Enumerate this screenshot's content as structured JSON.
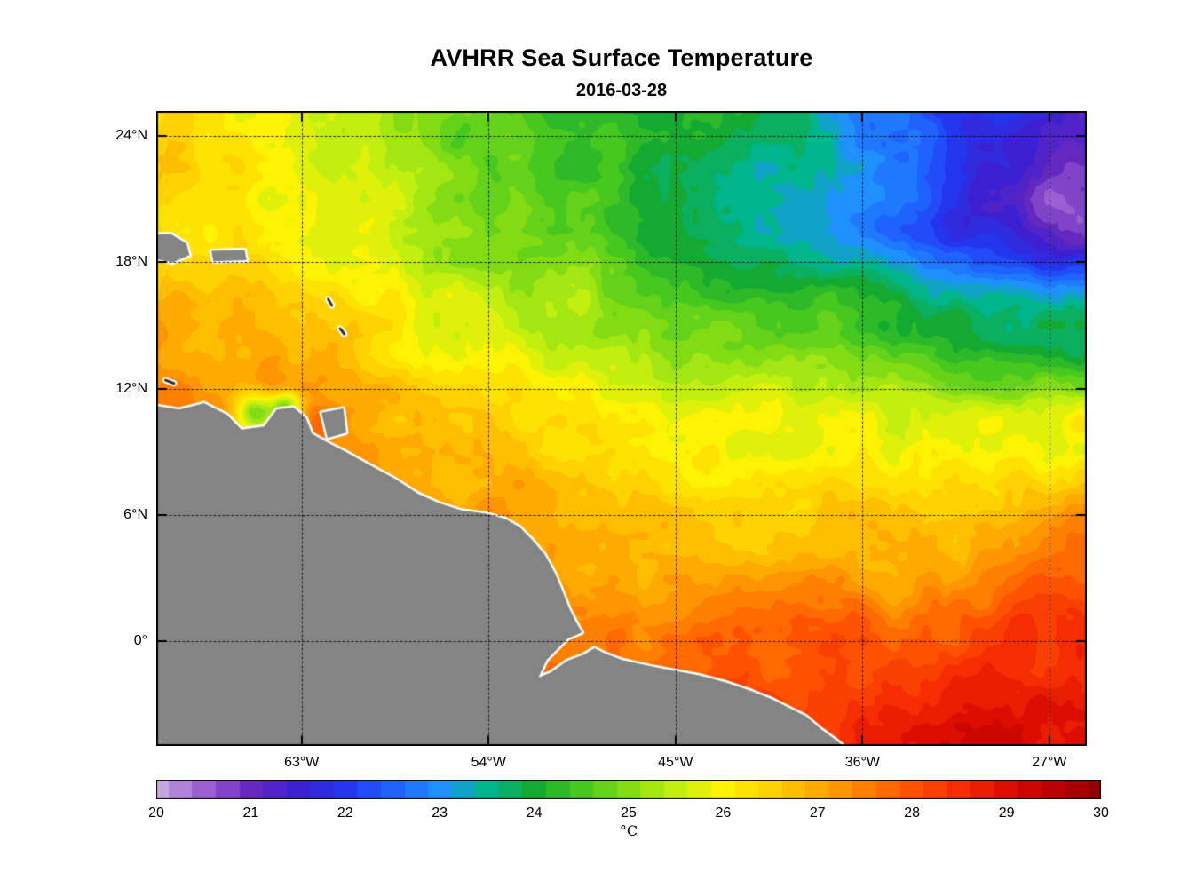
{
  "figure": {
    "title": "AVHRR Sea Surface Temperature",
    "subtitle": "2016-03-28",
    "background_color": "#ffffff"
  },
  "chart_data": {
    "type": "heatmap",
    "title": "AVHRR Sea Surface Temperature",
    "subtitle": "2016-03-28",
    "variable": "sea-surface-temperature",
    "units": "°C",
    "lon_range": [
      -70.0,
      -25.2
    ],
    "lat_range": [
      -5.0,
      25.2
    ],
    "x_axis": {
      "ticks": [
        {
          "lon": -63,
          "label": "63°W"
        },
        {
          "lon": -54,
          "label": "54°W"
        },
        {
          "lon": -45,
          "label": "45°W"
        },
        {
          "lon": -36,
          "label": "36°W"
        },
        {
          "lon": -27,
          "label": "27°W"
        }
      ]
    },
    "y_axis": {
      "ticks": [
        {
          "lat": 24,
          "label": "24°N"
        },
        {
          "lat": 18,
          "label": "18°N"
        },
        {
          "lat": 12,
          "label": "12°N"
        },
        {
          "lat": 6,
          "label": "6°N"
        },
        {
          "lat": 0,
          "label": "0°"
        }
      ]
    },
    "grid": {
      "show": true,
      "line_style": "dotted",
      "color": "#000000"
    },
    "colormap": {
      "min": 20,
      "max": 30,
      "quantize_step": 0.25,
      "stops": [
        [
          20.0,
          "#c4a8e0"
        ],
        [
          20.5,
          "#9a5fd0"
        ],
        [
          21.0,
          "#6428c0"
        ],
        [
          21.5,
          "#3c1fd0"
        ],
        [
          22.0,
          "#2336ee"
        ],
        [
          22.5,
          "#1e62ff"
        ],
        [
          23.0,
          "#1e90ff"
        ],
        [
          23.5,
          "#00b48c"
        ],
        [
          24.0,
          "#14aa32"
        ],
        [
          24.5,
          "#46c81e"
        ],
        [
          25.0,
          "#82dc14"
        ],
        [
          25.5,
          "#c3ef0f"
        ],
        [
          26.0,
          "#fdf303"
        ],
        [
          26.5,
          "#ffd200"
        ],
        [
          27.0,
          "#ffaa00"
        ],
        [
          27.5,
          "#ff8000"
        ],
        [
          28.0,
          "#ff5200"
        ],
        [
          28.5,
          "#f52d00"
        ],
        [
          29.0,
          "#dd0d00"
        ],
        [
          29.5,
          "#bb0000"
        ],
        [
          30.0,
          "#940000"
        ]
      ]
    },
    "colorbar": {
      "tick_labels": [
        "20",
        "21",
        "22",
        "23",
        "24",
        "25",
        "26",
        "27",
        "28",
        "29",
        "30"
      ],
      "unit_label": "°C"
    },
    "sst_field": {
      "lons": [
        -70,
        -65,
        -60,
        -55,
        -50,
        -45,
        -40,
        -35,
        -30,
        -25
      ],
      "lats": [
        -5,
        0,
        5,
        10,
        15,
        20,
        25
      ],
      "values_c": [
        [
          28.2,
          28.2,
          28.1,
          28.0,
          28.0,
          28.1,
          28.4,
          28.6,
          28.8,
          28.9
        ],
        [
          27.8,
          27.8,
          27.7,
          27.5,
          27.4,
          27.5,
          27.8,
          28.0,
          28.2,
          28.4
        ],
        [
          27.6,
          27.6,
          27.4,
          27.1,
          27.0,
          26.7,
          26.7,
          26.9,
          27.1,
          27.4
        ],
        [
          27.3,
          27.4,
          27.2,
          26.8,
          26.3,
          26.0,
          25.8,
          25.7,
          25.9,
          26.1
        ],
        [
          27.0,
          26.8,
          26.3,
          25.9,
          25.4,
          24.9,
          24.5,
          24.1,
          23.9,
          23.8
        ],
        [
          26.4,
          26.1,
          25.7,
          25.1,
          24.6,
          24.1,
          23.4,
          22.6,
          21.8,
          21.0
        ],
        [
          26.3,
          26.0,
          25.4,
          24.8,
          24.4,
          24.2,
          23.6,
          22.8,
          22.0,
          21.3
        ]
      ]
    },
    "anomalies_c": [
      {
        "lon": -27.3,
        "lat": 21.0,
        "r_deg": 1.6,
        "dT": -0.55
      },
      {
        "lon": -65.2,
        "lat": 10.8,
        "r_deg": 0.7,
        "dT": -2.3
      },
      {
        "lon": -63.7,
        "lat": 11.1,
        "r_deg": 0.55,
        "dT": -2.0
      },
      {
        "lon": -61.3,
        "lat": 13.6,
        "r_deg": 1.4,
        "dT": 0.5
      },
      {
        "lon": -62.2,
        "lat": 10.2,
        "r_deg": 0.6,
        "dT": 0.7
      },
      {
        "lon": -29.5,
        "lat": -3.0,
        "r_deg": 2.2,
        "dT": 0.35
      },
      {
        "lon": -26.5,
        "lat": 1.8,
        "r_deg": 1.4,
        "dT": 0.3
      },
      {
        "lon": -34.0,
        "lat": 1.8,
        "r_deg": 1.2,
        "dT": -0.35
      },
      {
        "lon": -53.0,
        "lat": 6.5,
        "r_deg": 1.2,
        "dT": 0.3
      }
    ],
    "noise_texture": {
      "seed": 7,
      "octaves": [
        {
          "scale_deg": 4.5,
          "amp_c": 0.22
        },
        {
          "scale_deg": 1.5,
          "amp_c": 0.25
        },
        {
          "scale_deg": 0.5,
          "amp_c": 0.12
        }
      ]
    },
    "land": {
      "fill_color": "#848484",
      "coast_halo_color": "#ffffff",
      "islet_color": "#303030",
      "polygons_lonlat": [
        [
          [
            -70.5,
            11.25
          ],
          [
            -68.9,
            11.0
          ],
          [
            -67.7,
            11.3
          ],
          [
            -66.6,
            10.75
          ],
          [
            -65.9,
            10.05
          ],
          [
            -64.8,
            10.2
          ],
          [
            -64.2,
            11.0
          ],
          [
            -63.4,
            11.1
          ],
          [
            -62.8,
            10.6
          ],
          [
            -62.5,
            9.85
          ],
          [
            -61.7,
            9.4
          ],
          [
            -60.9,
            9.0
          ],
          [
            -59.8,
            8.4
          ],
          [
            -58.5,
            7.7
          ],
          [
            -57.4,
            7.0
          ],
          [
            -56.4,
            6.55
          ],
          [
            -55.3,
            6.2
          ],
          [
            -54.1,
            6.05
          ],
          [
            -53.2,
            5.8
          ],
          [
            -52.5,
            5.4
          ],
          [
            -51.9,
            4.8
          ],
          [
            -51.3,
            4.1
          ],
          [
            -50.8,
            3.2
          ],
          [
            -50.5,
            2.5
          ],
          [
            -50.1,
            1.5
          ],
          [
            -49.8,
            0.9
          ],
          [
            -49.5,
            0.4
          ],
          [
            -50.2,
            0.1
          ],
          [
            -51.2,
            -0.9
          ],
          [
            -51.6,
            -1.75
          ],
          [
            -51.0,
            -1.5
          ],
          [
            -50.2,
            -0.95
          ],
          [
            -49.4,
            -0.65
          ],
          [
            -48.9,
            -0.35
          ],
          [
            -48.4,
            -0.6
          ],
          [
            -47.6,
            -0.9
          ],
          [
            -46.5,
            -1.15
          ],
          [
            -45.2,
            -1.4
          ],
          [
            -43.8,
            -1.65
          ],
          [
            -42.5,
            -2.0
          ],
          [
            -41.3,
            -2.4
          ],
          [
            -40.3,
            -2.8
          ],
          [
            -39.5,
            -3.2
          ],
          [
            -38.7,
            -3.6
          ],
          [
            -38.0,
            -4.2
          ],
          [
            -37.3,
            -4.7
          ],
          [
            -36.8,
            -5.1
          ],
          [
            -36.6,
            -5.6
          ],
          [
            -70.5,
            -5.6
          ]
        ],
        [
          [
            -70.5,
            19.3
          ],
          [
            -69.3,
            19.35
          ],
          [
            -68.55,
            18.9
          ],
          [
            -68.4,
            18.35
          ],
          [
            -69.2,
            18.0
          ],
          [
            -70.5,
            18.25
          ]
        ],
        [
          [
            -67.35,
            18.55
          ],
          [
            -65.75,
            18.6
          ],
          [
            -65.65,
            18.1
          ],
          [
            -67.25,
            18.05
          ]
        ],
        [
          [
            -62.05,
            10.85
          ],
          [
            -61.0,
            11.05
          ],
          [
            -60.85,
            9.9
          ],
          [
            -61.75,
            9.65
          ]
        ]
      ],
      "islet_lines_lonlat": [
        {
          "from": [
            -61.72,
            16.25
          ],
          "to": [
            -61.55,
            15.95
          ],
          "w": 3
        },
        {
          "from": [
            -61.15,
            14.85
          ],
          "to": [
            -60.95,
            14.6
          ],
          "w": 3
        },
        {
          "from": [
            -69.55,
            12.4
          ],
          "to": [
            -69.15,
            12.25
          ],
          "w": 3
        }
      ]
    }
  }
}
